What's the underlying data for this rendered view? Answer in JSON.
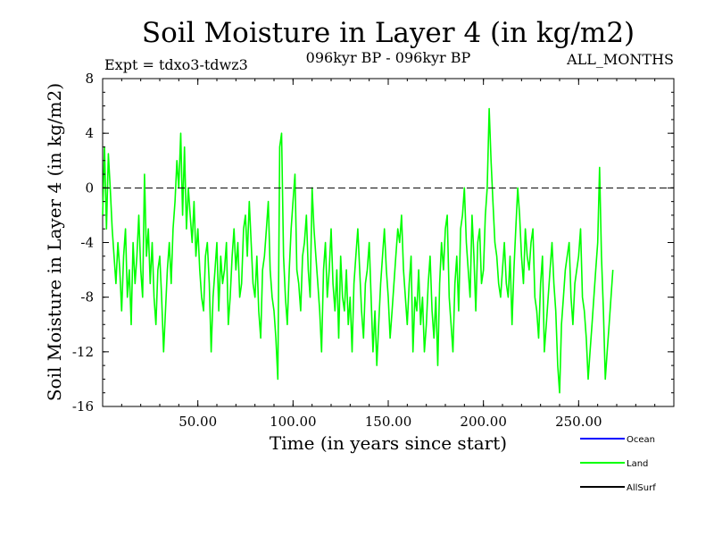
{
  "chart_data": {
    "type": "line",
    "title": "Soil Moisture in Layer 4 (in kg/m2)",
    "subtitle_left": "Expt = tdxo3-tdwz3",
    "subtitle_center": "096kyr BP - 096kyr BP",
    "subtitle_right": "ALL_MONTHS",
    "xlabel": "Time (in years since start)",
    "ylabel": "Soil Moisture in Layer 4 (in kg/m2)",
    "xlim": [
      0,
      300
    ],
    "ylim": [
      -16,
      8
    ],
    "x_ticks": [
      {
        "value": 50,
        "label": "50.00"
      },
      {
        "value": 100,
        "label": "100.00"
      },
      {
        "value": 150,
        "label": "150.00"
      },
      {
        "value": 200,
        "label": "200.00"
      },
      {
        "value": 250,
        "label": "250.00"
      }
    ],
    "y_ticks": [
      {
        "value": 8,
        "label": "8"
      },
      {
        "value": 4,
        "label": "4"
      },
      {
        "value": 0,
        "label": "0"
      },
      {
        "value": -4,
        "label": "-4"
      },
      {
        "value": -8,
        "label": "-8"
      },
      {
        "value": -12,
        "label": "-12"
      },
      {
        "value": -16,
        "label": "-16"
      }
    ],
    "zero_line": true,
    "grid": false,
    "legend_position": "bottom-right",
    "legend": [
      {
        "name": "Ocean",
        "color": "#0000ff"
      },
      {
        "name": "Land",
        "color": "#00ff00"
      },
      {
        "name": "AllSurf",
        "color": "#000000"
      }
    ],
    "series": [
      {
        "name": "Land",
        "color": "#00ff00",
        "x_start": 0,
        "x_step": 1,
        "values": [
          -2,
          3,
          -3,
          2.5,
          0,
          -3,
          -5,
          -7,
          -4,
          -6,
          -9,
          -5,
          -3,
          -8,
          -6,
          -10,
          -4,
          -7,
          -5,
          -2,
          -6,
          -8,
          1,
          -5,
          -3,
          -7,
          -4,
          -8,
          -10,
          -6,
          -5,
          -8,
          -12,
          -9,
          -6,
          -4,
          -7,
          -3,
          -1,
          2,
          0,
          4,
          -2,
          3,
          -3,
          0,
          -2,
          -4,
          -1,
          -5,
          -3,
          -6,
          -8,
          -9,
          -5,
          -4,
          -7,
          -12,
          -8,
          -6,
          -4,
          -9,
          -5,
          -7,
          -6,
          -4,
          -10,
          -8,
          -5,
          -3,
          -6,
          -4,
          -8,
          -7,
          -3,
          -2,
          -5,
          -1,
          -4,
          -7,
          -8,
          -5,
          -9,
          -11,
          -6,
          -5,
          -3,
          -1,
          -6,
          -8,
          -9,
          -11,
          -14,
          3,
          4,
          -5,
          -8,
          -10,
          -6,
          -3,
          -1,
          1,
          -6,
          -7,
          -9,
          -5,
          -4,
          -2,
          -6,
          -8,
          0,
          -3,
          -5,
          -7,
          -9,
          -12,
          -6,
          -4,
          -8,
          -6,
          -3,
          -7,
          -9,
          -6,
          -11,
          -5,
          -8,
          -9,
          -6,
          -10,
          -8,
          -12,
          -7,
          -5,
          -3,
          -6,
          -9,
          -11,
          -7,
          -6,
          -4,
          -8,
          -12,
          -9,
          -13,
          -10,
          -7,
          -5,
          -3,
          -6,
          -8,
          -11,
          -9,
          -7,
          -5,
          -3,
          -4,
          -2,
          -6,
          -8,
          -10,
          -7,
          -5,
          -12,
          -8,
          -9,
          -6,
          -10,
          -8,
          -12,
          -10,
          -7,
          -5,
          -9,
          -11,
          -8,
          -13,
          -7,
          -4,
          -6,
          -3,
          -2,
          -8,
          -10,
          -12,
          -7,
          -5,
          -9,
          -3,
          -2,
          0,
          -4,
          -6,
          -8,
          -2,
          -5,
          -9,
          -4,
          -3,
          -7,
          -6,
          -2,
          0,
          5.8,
          2,
          -1,
          -4,
          -5,
          -7,
          -8,
          -6,
          -4,
          -7,
          -8,
          -5,
          -10,
          -6,
          -3,
          0,
          -2,
          -5,
          -7,
          -3,
          -5,
          -6,
          -4,
          -3,
          -8,
          -9,
          -11,
          -7,
          -5,
          -12,
          -10,
          -8,
          -6,
          -4,
          -7,
          -9,
          -13,
          -15,
          -10,
          -8,
          -6,
          -5,
          -4,
          -8,
          -10,
          -7,
          -6,
          -5,
          -3,
          -8,
          -9,
          -11,
          -14,
          -12,
          -10,
          -8,
          -6,
          -4,
          1.5,
          -5,
          -9,
          -14,
          -12,
          -10,
          -8,
          -6
        ]
      },
      {
        "name": "Ocean",
        "color": "#0000ff",
        "values": []
      },
      {
        "name": "AllSurf",
        "color": "#000000",
        "values": []
      }
    ]
  }
}
